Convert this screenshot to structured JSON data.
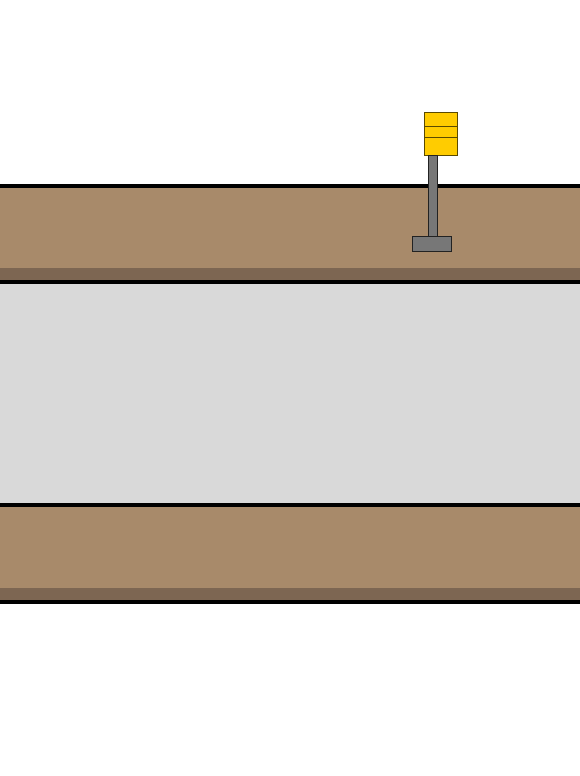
{
  "scene": {
    "background": "#ffffff",
    "sidewalk_color": "#a88a6a",
    "sidewalk_shadow_color": "#7d6652",
    "road_color": "#d9d9d9",
    "outline_color": "#000000"
  },
  "sign": {
    "panel_color": "#ffcc00",
    "pole_color": "#777777",
    "panels": 3
  }
}
